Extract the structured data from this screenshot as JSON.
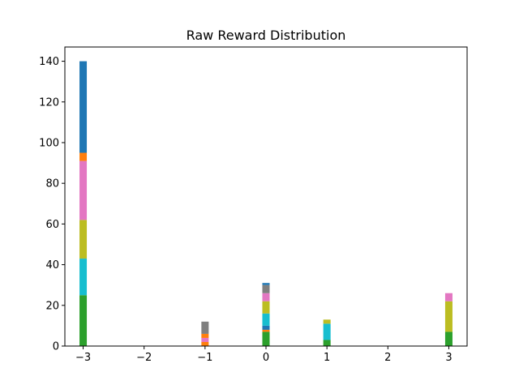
{
  "chart_data": {
    "type": "bar",
    "stacked": true,
    "title": "Raw Reward Distribution",
    "xlabel": "",
    "ylabel": "",
    "xlim": [
      -3.3,
      3.3
    ],
    "ylim": [
      0,
      147
    ],
    "bar_width": 0.12,
    "x_ticks": [
      -3,
      -2,
      -1,
      0,
      1,
      2,
      3
    ],
    "x_tick_labels": [
      "−3",
      "−2",
      "−1",
      "0",
      "1",
      "2",
      "3"
    ],
    "y_ticks": [
      0,
      20,
      40,
      60,
      80,
      100,
      120,
      140
    ],
    "y_tick_labels": [
      "0",
      "20",
      "40",
      "60",
      "80",
      "100",
      "120",
      "140"
    ],
    "grid": false,
    "legend": "none",
    "stacks": [
      {
        "x": -3,
        "segments": [
          {
            "color": "#2ca02c",
            "value": 25
          },
          {
            "color": "#17becf",
            "value": 18
          },
          {
            "color": "#bcbd22",
            "value": 19
          },
          {
            "color": "#e377c2",
            "value": 29
          },
          {
            "color": "#ff7f0e",
            "value": 4
          },
          {
            "color": "#1f77b4",
            "value": 45
          }
        ]
      },
      {
        "x": -1,
        "segments": [
          {
            "color": "#ff7f0e",
            "value": 2
          },
          {
            "color": "#e377c2",
            "value": 2
          },
          {
            "color": "#ff7f0e",
            "value": 2
          },
          {
            "color": "#7f7f7f",
            "value": 6
          }
        ]
      },
      {
        "x": 0,
        "segments": [
          {
            "color": "#2ca02c",
            "value": 7
          },
          {
            "color": "#ff7f0e",
            "value": 1
          },
          {
            "color": "#1f77b4",
            "value": 2
          },
          {
            "color": "#17becf",
            "value": 6
          },
          {
            "color": "#bcbd22",
            "value": 6
          },
          {
            "color": "#e377c2",
            "value": 4
          },
          {
            "color": "#7f7f7f",
            "value": 4
          },
          {
            "color": "#1f77b4",
            "value": 1
          }
        ]
      },
      {
        "x": 1,
        "segments": [
          {
            "color": "#2ca02c",
            "value": 3
          },
          {
            "color": "#17becf",
            "value": 8
          },
          {
            "color": "#bcbd22",
            "value": 2
          }
        ]
      },
      {
        "x": 3,
        "segments": [
          {
            "color": "#2ca02c",
            "value": 7
          },
          {
            "color": "#bcbd22",
            "value": 15
          },
          {
            "color": "#e377c2",
            "value": 4
          }
        ]
      }
    ]
  }
}
